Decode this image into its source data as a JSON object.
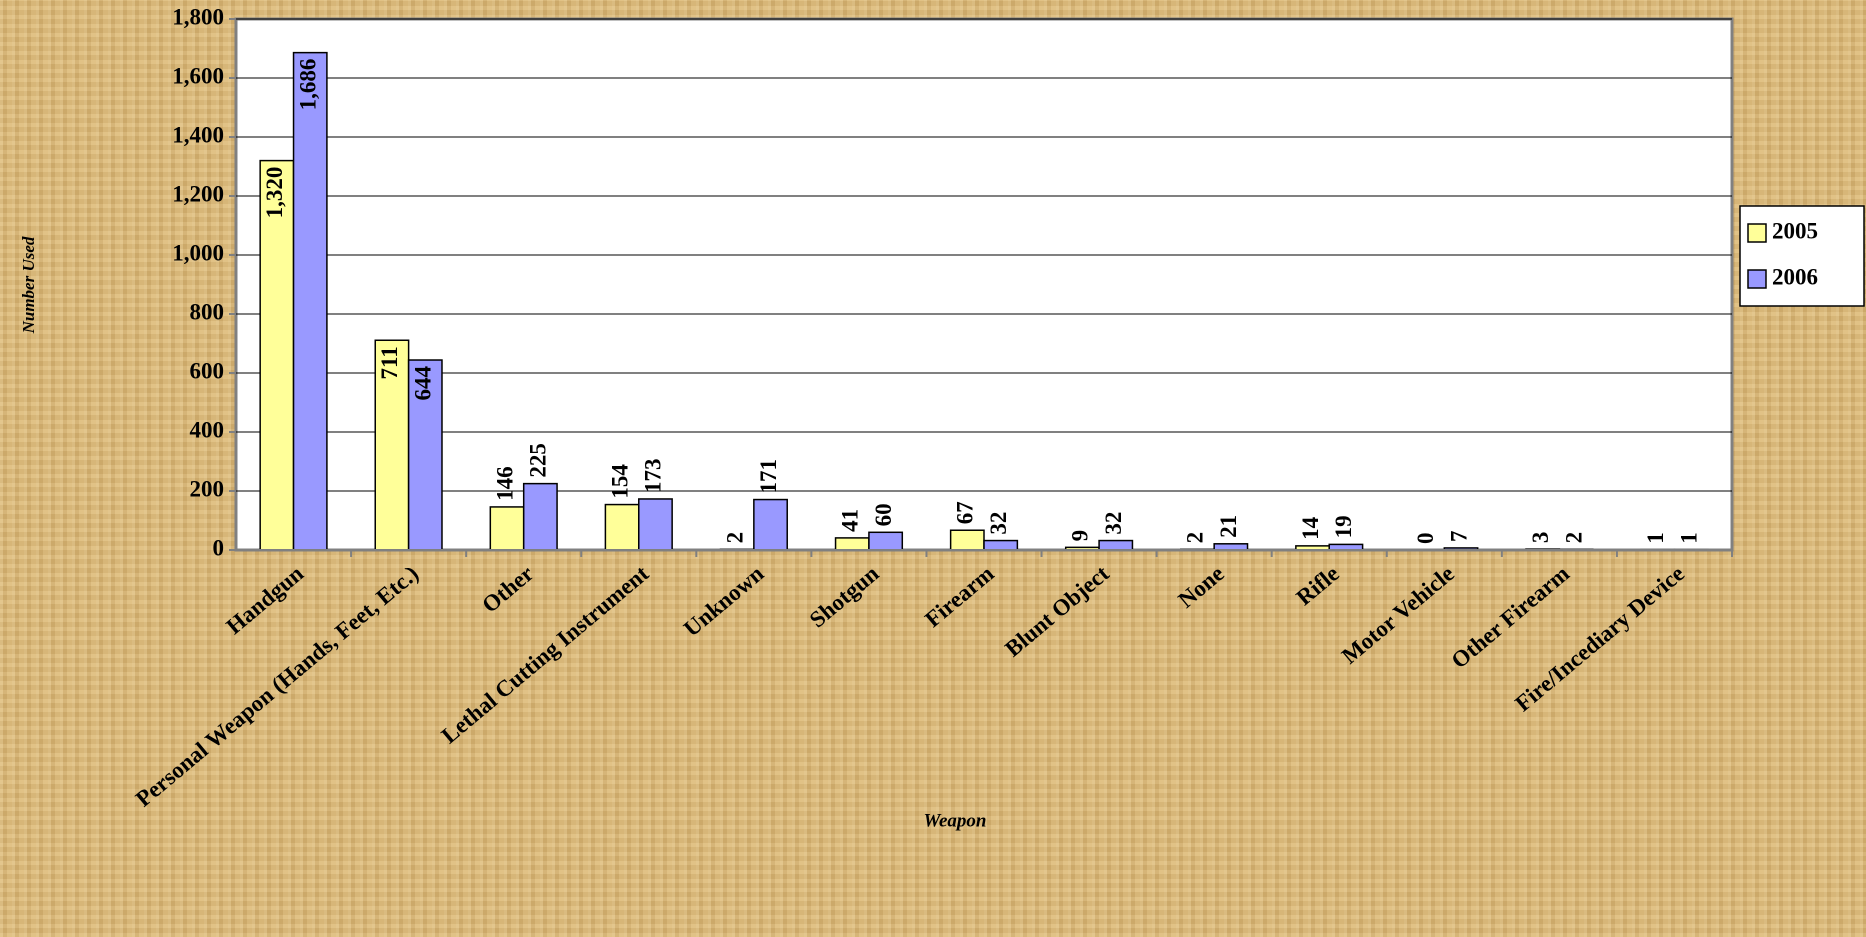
{
  "chart_data": {
    "type": "bar",
    "categories": [
      "Handgun",
      "Personal Weapon (Hands, Feet, Etc.)",
      "Other",
      "Lethal Cutting Instrument",
      "Unknown",
      "Shotgun",
      "Firearm",
      "Blunt Object",
      "None",
      "Rifle",
      "Motor Vehicle",
      "Other Firearm",
      "Fire/Incediary Device"
    ],
    "series": [
      {
        "name": "2005",
        "color": "#ffff99",
        "values": [
          1320,
          711,
          146,
          154,
          2,
          41,
          67,
          9,
          2,
          14,
          0,
          3,
          1
        ],
        "value_labels": [
          "1,320",
          "711",
          "146",
          "154",
          "2",
          "41",
          "67",
          "9",
          "2",
          "14",
          "0",
          "3",
          "1"
        ]
      },
      {
        "name": "2006",
        "color": "#9999ff",
        "values": [
          1686,
          644,
          225,
          173,
          171,
          60,
          32,
          32,
          21,
          19,
          7,
          2,
          1
        ],
        "value_labels": [
          "1,686",
          "644",
          "225",
          "173",
          "171",
          "60",
          "32",
          "32",
          "21",
          "19",
          "7",
          "2",
          "1"
        ]
      }
    ],
    "ylim": [
      0,
      1800
    ],
    "yticks": [
      0,
      200,
      400,
      600,
      800,
      {
        "value": 1000,
        "label": "1,000"
      },
      {
        "value": 1200,
        "label": "1,200"
      },
      {
        "value": 1400,
        "label": "1,400"
      },
      {
        "value": 1600,
        "label": "1,600"
      },
      {
        "value": 1800,
        "label": "1,800"
      }
    ],
    "grid": true,
    "legend": "right",
    "xlabel": "Weapon",
    "ylabel": "Number Used"
  }
}
